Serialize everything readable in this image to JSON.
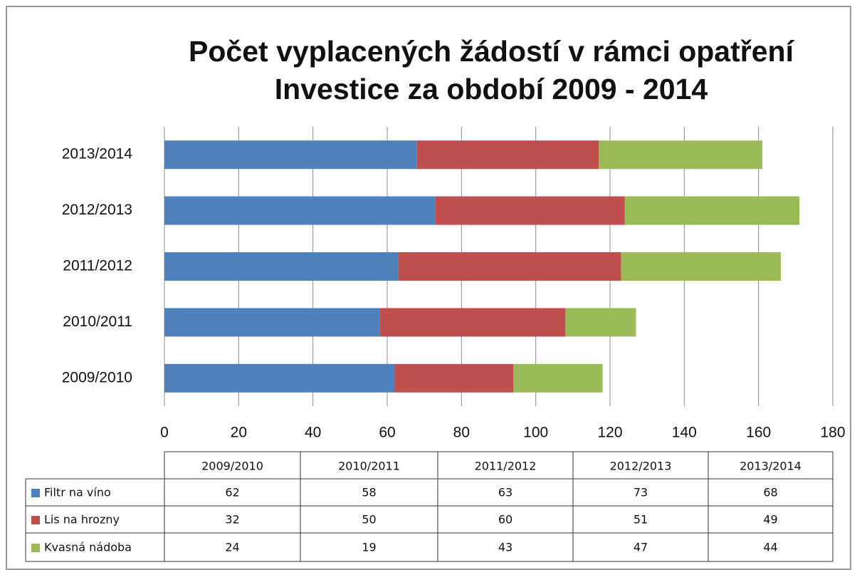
{
  "chart_data": {
    "type": "bar",
    "orientation": "horizontal",
    "stacked": true,
    "title": [
      "Počet vyplacených žádostí v rámci opatření",
      "Investice za období 2009 - 2014"
    ],
    "categories": [
      "2009/2010",
      "2010/2011",
      "2011/2012",
      "2012/2013",
      "2013/2014"
    ],
    "series": [
      {
        "name": "Filtr na víno",
        "color": "#4f81bd",
        "values": [
          62,
          58,
          63,
          73,
          68
        ]
      },
      {
        "name": "Lis na hrozny",
        "color": "#c0504d",
        "values": [
          32,
          50,
          60,
          51,
          49
        ]
      },
      {
        "name": "Kvasná nádoba",
        "color": "#9bbb59",
        "values": [
          24,
          19,
          43,
          47,
          44
        ]
      }
    ],
    "xlim": [
      0,
      180
    ],
    "xticks": [
      0,
      20,
      40,
      60,
      80,
      100,
      120,
      140,
      160,
      180
    ],
    "grid": true
  }
}
